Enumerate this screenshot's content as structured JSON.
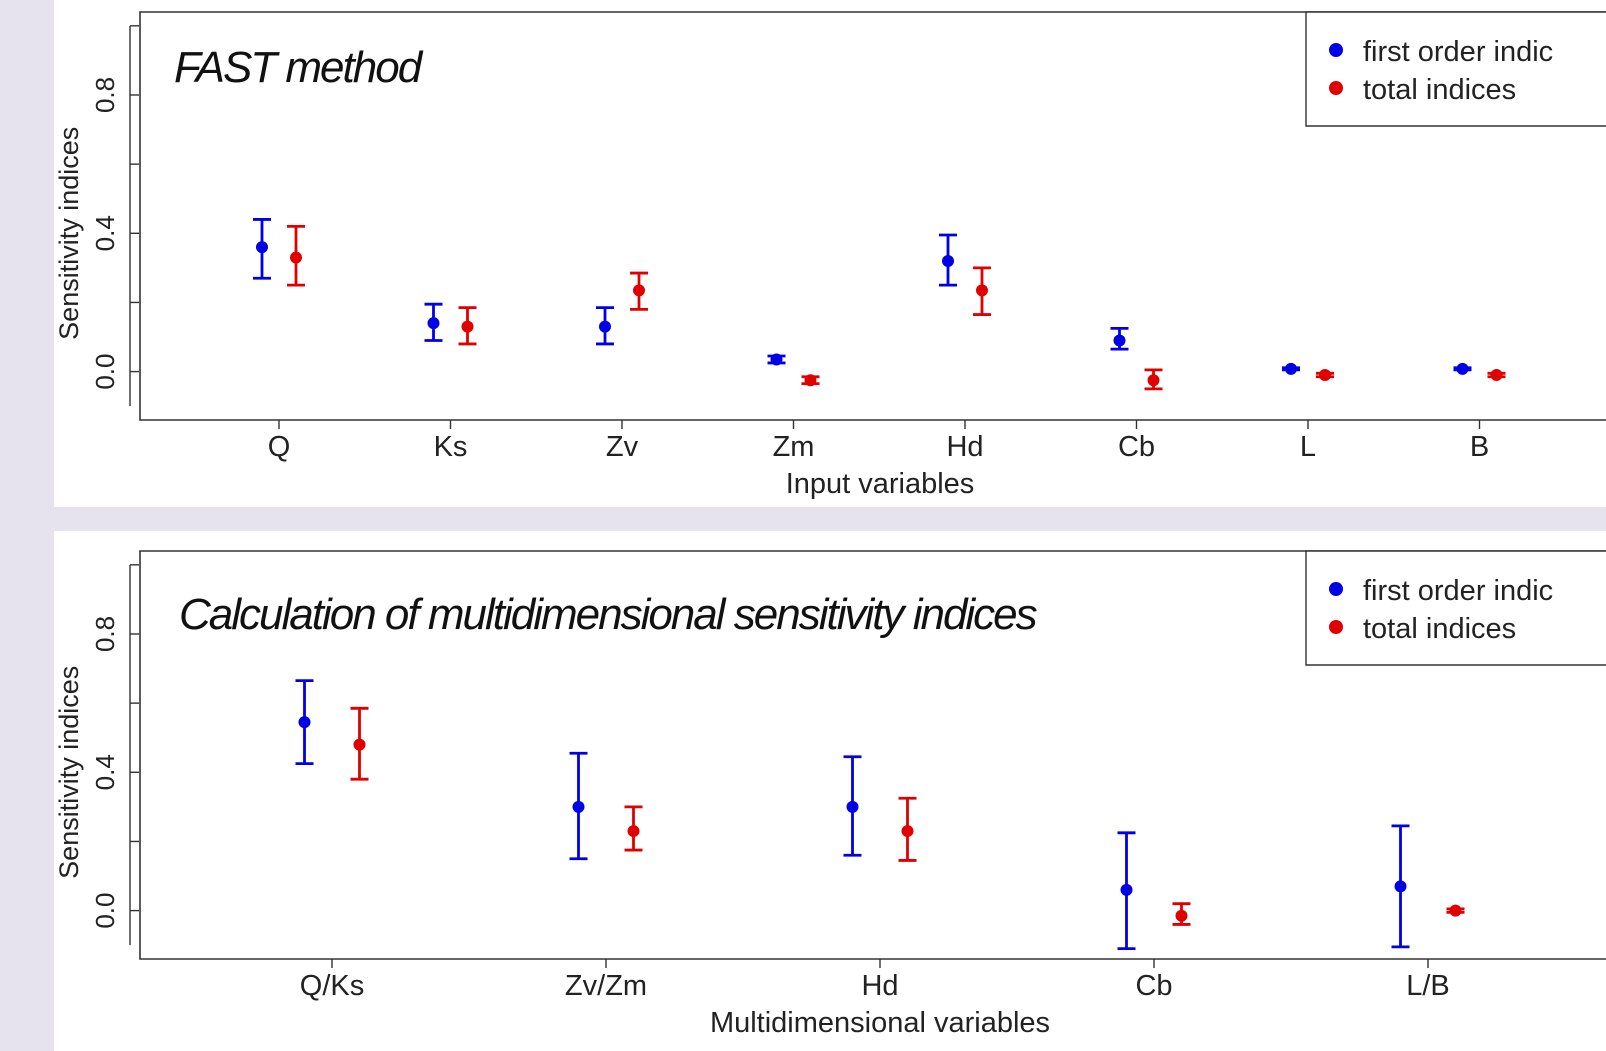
{
  "colors": {
    "first_order": "#0000e6",
    "total": "#e00000",
    "axis": "#333333",
    "background": "#e7e3ee",
    "panel": "#ffffff"
  },
  "chart_data": [
    {
      "type": "scatter",
      "title": "FAST method",
      "xlabel": "Input variables",
      "ylabel": "Sensitivity indices",
      "ylim": [
        -0.14,
        1.04
      ],
      "yticks": [
        "0.0",
        "0.4",
        "0.8"
      ],
      "legend": {
        "position": "top-right",
        "entries": [
          "first order indic",
          "total indices"
        ]
      },
      "categories": [
        "Q",
        "Ks",
        "Zv",
        "Zm",
        "Hd",
        "Cb",
        "L",
        "B"
      ],
      "series": [
        {
          "name": "first order indic",
          "values": [
            0.36,
            0.14,
            0.13,
            0.035,
            0.32,
            0.09,
            0.008,
            0.008
          ],
          "lower": [
            0.27,
            0.09,
            0.08,
            0.025,
            0.25,
            0.065,
            0.005,
            0.005
          ],
          "upper": [
            0.44,
            0.195,
            0.185,
            0.045,
            0.395,
            0.125,
            0.011,
            0.011
          ]
        },
        {
          "name": "total indices",
          "values": [
            0.33,
            0.13,
            0.235,
            -0.025,
            0.235,
            -0.025,
            -0.01,
            -0.01
          ],
          "lower": [
            0.25,
            0.08,
            0.18,
            -0.035,
            0.165,
            -0.05,
            -0.015,
            -0.015
          ],
          "upper": [
            0.42,
            0.185,
            0.285,
            -0.015,
            0.3,
            0.005,
            -0.005,
            -0.005
          ]
        }
      ]
    },
    {
      "type": "scatter",
      "title": "Calculation of multidimensional sensitivity indices",
      "xlabel": "Multidimensional variables",
      "ylabel": "Sensitivity indices",
      "ylim": [
        -0.14,
        1.04
      ],
      "yticks": [
        "0.0",
        "0.4",
        "0.8"
      ],
      "legend": {
        "position": "top-right",
        "entries": [
          "first order indic",
          "total indices"
        ]
      },
      "categories": [
        "Q/Ks",
        "Zv/Zm",
        "Hd",
        "Cb",
        "L/B"
      ],
      "series": [
        {
          "name": "first order indic",
          "values": [
            0.545,
            0.3,
            0.3,
            0.06,
            0.07
          ],
          "lower": [
            0.425,
            0.15,
            0.16,
            -0.11,
            -0.105
          ],
          "upper": [
            0.665,
            0.455,
            0.445,
            0.225,
            0.245
          ]
        },
        {
          "name": "total indices",
          "values": [
            0.48,
            0.23,
            0.23,
            -0.015,
            0.0
          ],
          "lower": [
            0.38,
            0.175,
            0.145,
            -0.04,
            -0.005
          ],
          "upper": [
            0.585,
            0.3,
            0.325,
            0.02,
            0.005
          ]
        }
      ]
    }
  ]
}
